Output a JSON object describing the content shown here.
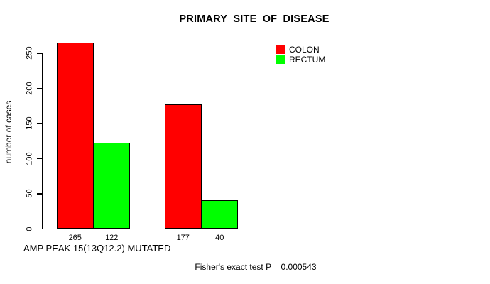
{
  "chart_data": {
    "type": "bar",
    "title": "PRIMARY_SITE_OF_DISEASE",
    "xlabel": "AMP PEAK 15(13Q12.2) MUTATED",
    "ylabel": "number of cases",
    "ylim": [
      0,
      250
    ],
    "yticks": [
      0,
      50,
      100,
      150,
      200,
      250
    ],
    "grid": false,
    "legend_position": "top-right",
    "categories": [
      "group-1",
      "group-2"
    ],
    "series": [
      {
        "name": "COLON",
        "color": "#ff0000",
        "values": [
          265,
          177
        ]
      },
      {
        "name": "RECTUM",
        "color": "#00ff00",
        "values": [
          122,
          40
        ]
      }
    ],
    "annotation": "Fisher's exact test P = 0.000543"
  }
}
